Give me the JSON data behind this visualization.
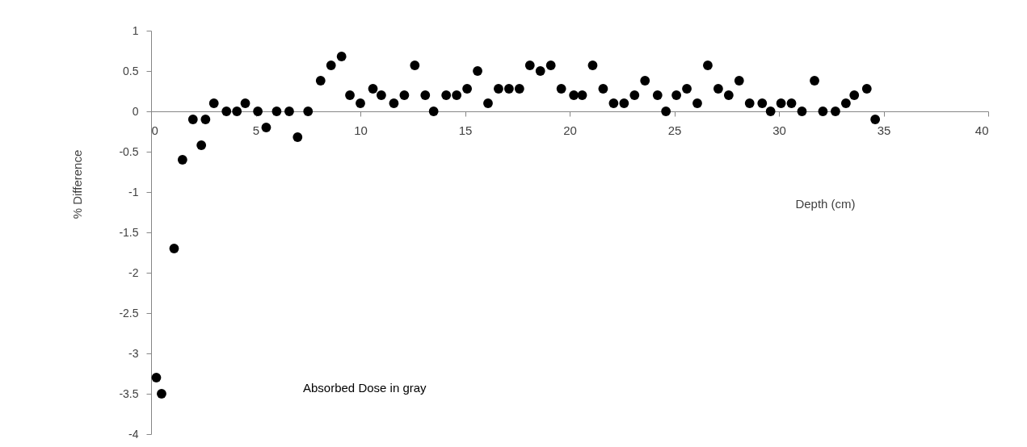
{
  "chart_data": {
    "type": "scatter",
    "xlabel": "Depth (cm)",
    "ylabel": "% Difference",
    "annotations": [
      "Absorbed Dose in gray"
    ],
    "x": [
      0.25,
      0.5,
      1.1,
      1.5,
      2.0,
      2.4,
      2.6,
      3.0,
      3.6,
      4.1,
      4.5,
      5.1,
      5.5,
      6.0,
      6.6,
      7.0,
      7.5,
      8.1,
      8.6,
      9.1,
      9.5,
      10.0,
      10.6,
      11.0,
      11.6,
      12.1,
      12.6,
      13.1,
      13.5,
      14.1,
      14.6,
      15.1,
      15.6,
      16.1,
      16.6,
      17.1,
      17.6,
      18.1,
      18.6,
      19.1,
      19.6,
      20.2,
      20.6,
      21.1,
      21.6,
      22.1,
      22.6,
      23.1,
      23.6,
      24.2,
      24.6,
      25.1,
      25.6,
      26.1,
      26.6,
      27.1,
      27.6,
      28.1,
      28.6,
      29.2,
      29.6,
      30.1,
      30.6,
      31.1,
      31.7,
      32.1,
      32.7,
      33.2,
      33.6,
      34.2,
      34.6
    ],
    "series": [
      {
        "color": "#000000",
        "values": [
          -3.3,
          -3.5,
          -1.7,
          -0.6,
          -0.1,
          -0.42,
          -0.1,
          0.1,
          0,
          0,
          0.1,
          0,
          -0.2,
          0,
          0,
          -0.32,
          0,
          0.38,
          0.57,
          0.68,
          0.2,
          0.1,
          0.28,
          0.2,
          0.1,
          0.2,
          0.57,
          0.2,
          0,
          0.2,
          0.2,
          0.28,
          0.5,
          0.1,
          0.28,
          0.28,
          0.28,
          0.57,
          0.5,
          0.57,
          0.28,
          0.2,
          0.2,
          0.57,
          0.28,
          0.1,
          0.1,
          0.2,
          0.38,
          0.2,
          0,
          0.2,
          0.28,
          0.1,
          0.57,
          0.28,
          0.2,
          0.38,
          0.1,
          0.1,
          0,
          0.1,
          0.1,
          0,
          0.38,
          0,
          0,
          0.1,
          0.2,
          0.28,
          -0.1
        ]
      }
    ],
    "xlim": [
      0,
      40
    ],
    "xticks": [
      0,
      5,
      10,
      15,
      20,
      25,
      30,
      35,
      40
    ],
    "ylim": [
      -4,
      1
    ],
    "yticks": [
      -4,
      -3.5,
      -3,
      -2.5,
      -2,
      -1.5,
      -1,
      -0.5,
      0,
      0.5,
      1
    ],
    "grid": false,
    "legend": false,
    "marker": "circle"
  }
}
